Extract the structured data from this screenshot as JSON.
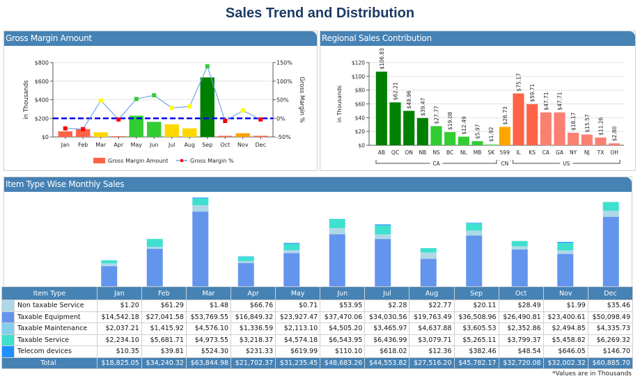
{
  "page": {
    "title": "Sales Trend and Distribution",
    "footnote": "*Values are in Thousands"
  },
  "panels": {
    "gross_margin": "Gross Margin Amount",
    "regional": "Regional Sales Contribution",
    "item_type": "Item Type Wise Monthly Sales"
  },
  "chart_data": [
    {
      "type": "bar",
      "title": "Gross Margin Amount",
      "categories": [
        "Jan",
        "Feb",
        "Mar",
        "Apr",
        "May",
        "Jun",
        "Jul",
        "Aug",
        "Sep",
        "Oct",
        "Nov",
        "Dec"
      ],
      "ylabel": "in Thousands",
      "y2label": "Gross Margin %",
      "ylim": [
        0,
        800
      ],
      "y2lim": [
        -50,
        150
      ],
      "yticks": [
        "$0",
        "$200",
        "$400",
        "$600",
        "$800"
      ],
      "y2ticks": [
        "-50%",
        "0%",
        "50%",
        "100%",
        "150%"
      ],
      "target_line_pct": 0,
      "series": [
        {
          "name": "Gross Margin Amount",
          "kind": "bar",
          "values": [
            60,
            85,
            50,
            8,
            228,
            162,
            136,
            92,
            640,
            12,
            40,
            12
          ],
          "colors": [
            "#ff6347",
            "#ff6347",
            "#ffd700",
            "#ff6347",
            "#32cd32",
            "#32cd32",
            "#ffd700",
            "#ffd700",
            "#008000",
            "#ff6347",
            "#ffa500",
            "#ff6347"
          ]
        },
        {
          "name": "Gross Margin %",
          "kind": "line",
          "line_color": "#6ca6e8",
          "values": [
            -27,
            -29,
            48,
            -3,
            52,
            62,
            28,
            32,
            140,
            -7,
            21,
            -3
          ],
          "marker_colors": [
            "#ff0000",
            "#ff0000",
            "#ffff00",
            "#ff0000",
            "#32cd32",
            "#32cd32",
            "#ffff00",
            "#ffff00",
            "#32cd32",
            "#ff0000",
            "#ffff00",
            "#ff0000"
          ]
        }
      ],
      "legend": [
        {
          "label": "Gross Margin Amount",
          "color": "#ff6347"
        },
        {
          "label": "Gross Margin %",
          "color": "#6ca6e8",
          "marker": "#ff0000"
        }
      ],
      "legend_position": "bottom",
      "grid": true
    },
    {
      "type": "bar",
      "title": "Regional Sales Contribution",
      "ylabel": "in Thousands",
      "ylim": [
        0,
        120
      ],
      "yticks": [
        "$0",
        "$20",
        "$40",
        "$60",
        "$80",
        "$100",
        "$120"
      ],
      "categories": [
        "AB",
        "QC",
        "ON",
        "NB",
        "NS",
        "BC",
        "NL",
        "MB",
        "SK",
        "599",
        "IL",
        "KS",
        "CA",
        "GA",
        "NY",
        "NJ",
        "TX",
        "OH"
      ],
      "values": [
        106.83,
        62.21,
        49.96,
        39.47,
        27.77,
        19.08,
        12.49,
        5.97,
        1.92,
        26.73,
        75.17,
        59.71,
        47.71,
        47.71,
        18.17,
        15.57,
        11.26,
        2.8
      ],
      "labels": [
        "$106.83",
        "$62.21",
        "$49.96",
        "$39.47",
        "$27.77",
        "$19.08",
        "$12.49",
        "$5.97",
        "$1.92",
        "$26.73",
        "$75.17",
        "$59.71",
        "$47.71",
        "$47.71",
        "$18.17",
        "$15.57",
        "$11.26",
        "$2.80"
      ],
      "colors": [
        "#008000",
        "#008000",
        "#008000",
        "#008000",
        "#32cd32",
        "#32cd32",
        "#32cd32",
        "#32cd32",
        "#90ee90",
        "#ffa500",
        "#ff6347",
        "#ff6347",
        "#fa8072",
        "#fa8072",
        "#fa8072",
        "#fa8072",
        "#fa8072",
        "#fa8072"
      ],
      "groups": [
        {
          "label": "CA",
          "from": 0,
          "to": 8
        },
        {
          "label": "CN",
          "from": 9,
          "to": 9
        },
        {
          "label": "US",
          "from": 10,
          "to": 17
        }
      ],
      "grid": true
    },
    {
      "type": "bar",
      "stacked": true,
      "title": "Item Type Wise Monthly Sales",
      "categories": [
        "Jan",
        "Feb",
        "Mar",
        "Apr",
        "May",
        "Jun",
        "Jul",
        "Aug",
        "Sep",
        "Oct",
        "Nov",
        "Dec"
      ],
      "series": [
        {
          "name": "Taxable Equipment",
          "color": "#6495ed",
          "values": [
            14542.18,
            27041.58,
            53769.55,
            16849.32,
            23927.47,
            37470.06,
            34030.56,
            19763.49,
            36508.96,
            26490.81,
            23400.61,
            50098.49
          ]
        },
        {
          "name": "Taxable Maintenance",
          "color": "#add8e6",
          "values": [
            2037.21,
            1415.92,
            4576.1,
            1336.59,
            2113.1,
            4505.2,
            3465.97,
            4637.88,
            3605.53,
            2352.86,
            2494.85,
            4335.73
          ]
        },
        {
          "name": "Taxable Service",
          "color": "#40e0d0",
          "values": [
            2234.1,
            5681.71,
            4973.55,
            3218.37,
            4574.18,
            6543.95,
            6436.99,
            3079.71,
            5265.11,
            3799.37,
            5458.82,
            6269.32
          ]
        },
        {
          "name": "Telecom devices",
          "color": "#1e90ff",
          "values": [
            10.35,
            39.81,
            524.3,
            231.33,
            619.99,
            110.1,
            618.02,
            12.36,
            382.46,
            48.54,
            646.05,
            146.7
          ]
        },
        {
          "name": "Non taxable Service",
          "color": "#add8e6",
          "values": [
            1.2,
            61.29,
            1.48,
            66.76,
            0.71,
            53.95,
            2.28,
            22.77,
            20.11,
            28.49,
            1.99,
            35.46
          ]
        }
      ],
      "ylim": [
        0,
        66000
      ]
    }
  ],
  "table": {
    "header": [
      "Item Type",
      "Jan",
      "Feb",
      "Mar",
      "Apr",
      "May",
      "Jun",
      "Jul",
      "Aug",
      "Sep",
      "Oct",
      "Nov",
      "Dec"
    ],
    "rows": [
      {
        "label": "Non taxable Service",
        "color": "#add8e6",
        "values": [
          "$1.20",
          "$61.29",
          "$1.48",
          "$66.76",
          "$0.71",
          "$53.95",
          "$2.28",
          "$22.77",
          "$20.11",
          "$28.49",
          "$1.99",
          "$35.46"
        ]
      },
      {
        "label": "Taxable Equipment",
        "color": "#6495ed",
        "values": [
          "$14,542.18",
          "$27,041.58",
          "$53,769.55",
          "$16,849.32",
          "$23,927.47",
          "$37,470.06",
          "$34,030.56",
          "$19,763.49",
          "$36,508.96",
          "$26,490.81",
          "$23,400.61",
          "$50,098.49"
        ]
      },
      {
        "label": "Taxable Maintenance",
        "color": "#87ceeb",
        "values": [
          "$2,037.21",
          "$1,415.92",
          "$4,576.10",
          "$1,336.59",
          "$2,113.10",
          "$4,505.20",
          "$3,465.97",
          "$4,637.88",
          "$3,605.53",
          "$2,352.86",
          "$2,494.85",
          "$4,335.73"
        ]
      },
      {
        "label": "Taxable Service",
        "color": "#40e0d0",
        "values": [
          "$2,234.10",
          "$5,681.71",
          "$4,973.55",
          "$3,218.37",
          "$4,574.18",
          "$6,543.95",
          "$6,436.99",
          "$3,079.71",
          "$5,265.11",
          "$3,799.37",
          "$5,458.82",
          "$6,269.32"
        ]
      },
      {
        "label": "Telecom devices",
        "color": "#1e90ff",
        "values": [
          "$10.35",
          "$39.81",
          "$524.30",
          "$231.33",
          "$619.99",
          "$110.10",
          "$618.02",
          "$12.36",
          "$382.46",
          "$48.54",
          "$646.05",
          "$146.70"
        ]
      }
    ],
    "total": {
      "label": "Total",
      "values": [
        "$18,825.05",
        "$34,240.32",
        "$63,844.98",
        "$21,702.37",
        "$31,235.45",
        "$48,683.26",
        "$44,553.82",
        "$27,516.20",
        "$45,782.17",
        "$32,720.08",
        "$32,002.32",
        "$60,885.70"
      ]
    }
  }
}
